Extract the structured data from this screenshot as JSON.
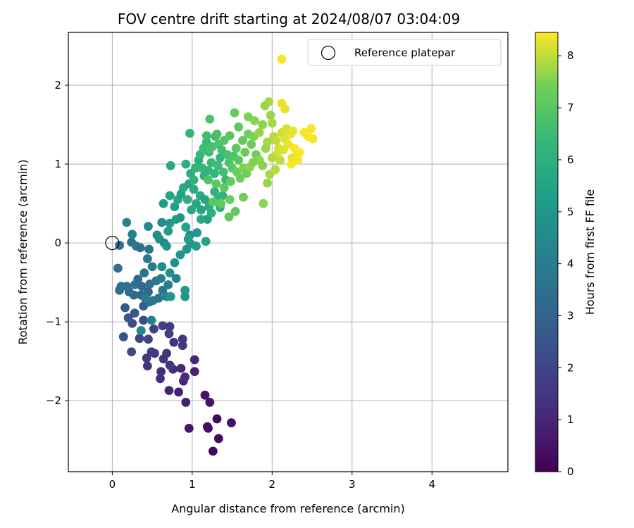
{
  "chart_data": {
    "type": "scatter",
    "title": "FOV centre drift starting at 2024/08/07 03:04:09",
    "xlabel": "Angular distance from reference (arcmin)",
    "ylabel": "Rotation from reference (arcmin)",
    "xlim": [
      -0.55,
      4.95
    ],
    "ylim": [
      -2.9,
      2.67
    ],
    "xticks": [
      0,
      1,
      2,
      3,
      4
    ],
    "yticks": [
      -2,
      -1,
      0,
      1,
      2
    ],
    "x_tick_labels": [
      "0",
      "1",
      "2",
      "3",
      "4"
    ],
    "y_tick_labels": [
      "−2",
      "−1",
      "0",
      "1",
      "2"
    ],
    "grid": true,
    "legend": {
      "position": "top-right",
      "entries": [
        "Reference platepar"
      ]
    },
    "reference_point": {
      "x": 0,
      "y": 0,
      "label": "Reference platepar"
    },
    "colorbar": {
      "label": "Hours from first FF file",
      "range": [
        0,
        8.45
      ],
      "ticks": [
        0,
        1,
        2,
        3,
        4,
        5,
        6,
        7,
        8
      ],
      "tick_labels": [
        "0",
        "1",
        "2",
        "3",
        "4",
        "5",
        "6",
        "7",
        "8"
      ],
      "colormap": "viridis"
    },
    "points": [
      [
        1.26,
        -2.64,
        0.2
      ],
      [
        1.33,
        -2.48,
        0.3
      ],
      [
        1.31,
        -2.23,
        0.25
      ],
      [
        1.49,
        -2.28,
        0.35
      ],
      [
        1.19,
        -2.33,
        0.3
      ],
      [
        1.2,
        -2.35,
        0.4
      ],
      [
        0.96,
        -2.35,
        0.5
      ],
      [
        1.16,
        -1.93,
        0.6
      ],
      [
        1.22,
        -2.02,
        0.55
      ],
      [
        0.92,
        -2.02,
        0.8
      ],
      [
        0.83,
        -1.89,
        0.9
      ],
      [
        0.71,
        -1.87,
        1.0
      ],
      [
        1.03,
        -1.63,
        0.9
      ],
      [
        1.03,
        -1.48,
        1.0
      ],
      [
        0.89,
        -1.75,
        1.1
      ],
      [
        0.91,
        -1.7,
        1.2
      ],
      [
        0.86,
        -1.59,
        1.1
      ],
      [
        0.6,
        -1.72,
        1.3
      ],
      [
        0.61,
        -1.63,
        1.2
      ],
      [
        0.76,
        -1.6,
        1.3
      ],
      [
        0.44,
        -1.56,
        1.4
      ],
      [
        0.72,
        -1.55,
        1.5
      ],
      [
        0.64,
        -1.47,
        1.5
      ],
      [
        0.53,
        -1.4,
        1.6
      ],
      [
        0.49,
        -1.38,
        1.7
      ],
      [
        0.43,
        -1.46,
        1.6
      ],
      [
        0.68,
        -1.4,
        1.5
      ],
      [
        0.77,
        -1.26,
        1.4
      ],
      [
        0.88,
        -1.3,
        1.5
      ],
      [
        0.88,
        -1.22,
        1.6
      ],
      [
        0.71,
        -1.15,
        1.7
      ],
      [
        0.63,
        -1.05,
        1.8
      ],
      [
        0.72,
        -1.06,
        1.7
      ],
      [
        0.52,
        -1.09,
        1.8
      ],
      [
        0.45,
        -1.22,
        1.9
      ],
      [
        0.34,
        -1.21,
        2.0
      ],
      [
        0.36,
        -1.11,
        2.1
      ],
      [
        0.39,
        -0.98,
        2.2
      ],
      [
        0.25,
        -1.02,
        2.3
      ],
      [
        0.14,
        -1.19,
        2.4
      ],
      [
        0.24,
        -1.38,
        2.1
      ],
      [
        0.2,
        -0.95,
        2.5
      ],
      [
        0.28,
        -0.89,
        2.6
      ],
      [
        0.16,
        -0.82,
        2.7
      ],
      [
        0.39,
        -0.8,
        2.8
      ],
      [
        0.43,
        -0.72,
        2.9
      ],
      [
        0.45,
        -0.62,
        3.0
      ],
      [
        0.36,
        -0.66,
        3.1
      ],
      [
        0.27,
        -0.66,
        3.2
      ],
      [
        0.21,
        -0.62,
        3.3
      ],
      [
        0.09,
        -0.6,
        3.4
      ],
      [
        0.11,
        -0.55,
        3.5
      ],
      [
        0.18,
        -0.55,
        3.6
      ],
      [
        0.28,
        -0.53,
        3.7
      ],
      [
        0.37,
        -0.55,
        3.2
      ],
      [
        0.47,
        -0.52,
        3.4
      ],
      [
        0.4,
        -0.38,
        3.6
      ],
      [
        0.32,
        -0.46,
        3.3
      ],
      [
        0.07,
        -0.32,
        3.5
      ],
      [
        0.09,
        -0.03,
        3.4
      ],
      [
        0.24,
        0.01,
        3.6
      ],
      [
        0.3,
        -0.04,
        3.7
      ],
      [
        0.35,
        -0.06,
        3.4
      ],
      [
        0.46,
        -0.08,
        3.6
      ],
      [
        0.44,
        -0.2,
        3.8
      ],
      [
        0.5,
        -0.3,
        4.0
      ],
      [
        0.55,
        -0.48,
        3.9
      ],
      [
        0.61,
        -0.45,
        4.1
      ],
      [
        0.63,
        -0.6,
        3.8
      ],
      [
        0.7,
        -0.53,
        4.0
      ],
      [
        0.8,
        -0.45,
        4.2
      ],
      [
        0.68,
        -0.68,
        4.3
      ],
      [
        0.58,
        -0.7,
        3.7
      ],
      [
        0.51,
        -0.73,
        3.8
      ],
      [
        0.46,
        -0.75,
        3.6
      ],
      [
        0.41,
        -0.7,
        3.9
      ],
      [
        0.49,
        -0.98,
        4.1
      ],
      [
        0.36,
        -1.11,
        4.4
      ],
      [
        0.18,
        0.26,
        4.3
      ],
      [
        0.25,
        0.11,
        4.2
      ],
      [
        0.45,
        0.21,
        4.5
      ],
      [
        0.62,
        0.26,
        4.6
      ],
      [
        0.56,
        0.1,
        4.7
      ],
      [
        0.59,
        0.05,
        4.8
      ],
      [
        0.65,
        0.0,
        4.4
      ],
      [
        0.68,
        -0.04,
        4.9
      ],
      [
        0.62,
        -0.3,
        4.6
      ],
      [
        0.72,
        -0.38,
        4.8
      ],
      [
        0.73,
        -0.68,
        5.0
      ],
      [
        0.91,
        -0.68,
        4.9
      ],
      [
        0.91,
        -0.6,
        5.0
      ],
      [
        0.78,
        -0.25,
        4.7
      ],
      [
        0.85,
        -0.15,
        4.9
      ],
      [
        0.93,
        -0.08,
        5.1
      ],
      [
        0.98,
        -0.01,
        5.0
      ],
      [
        0.97,
        0.1,
        4.8
      ],
      [
        0.7,
        0.15,
        5.2
      ],
      [
        0.72,
        0.25,
        5.1
      ],
      [
        0.8,
        0.3,
        5.3
      ],
      [
        0.85,
        0.32,
        5.0
      ],
      [
        0.92,
        0.2,
        5.4
      ],
      [
        0.95,
        0.05,
        5.2
      ],
      [
        1.05,
        -0.04,
        5.3
      ],
      [
        1.06,
        0.13,
        5.1
      ],
      [
        1.17,
        0.02,
        5.5
      ],
      [
        1.19,
        0.3,
        5.4
      ],
      [
        1.11,
        0.42,
        5.5
      ],
      [
        0.64,
        0.5,
        5.2
      ],
      [
        0.72,
        0.6,
        5.5
      ],
      [
        0.78,
        0.46,
        5.3
      ],
      [
        0.82,
        0.55,
        5.6
      ],
      [
        0.86,
        0.62,
        5.4
      ],
      [
        0.89,
        0.7,
        5.7
      ],
      [
        0.96,
        0.75,
        5.5
      ],
      [
        1.02,
        0.68,
        5.8
      ],
      [
        1.05,
        0.5,
        5.6
      ],
      [
        0.99,
        0.42,
        5.7
      ],
      [
        0.94,
        0.55,
        5.9
      ],
      [
        1.1,
        0.6,
        5.8
      ],
      [
        1.16,
        0.55,
        5.6
      ],
      [
        1.21,
        0.46,
        5.9
      ],
      [
        1.24,
        0.38,
        6.0
      ],
      [
        1.11,
        0.3,
        5.8
      ],
      [
        1.28,
        0.65,
        6.1
      ],
      [
        1.32,
        0.55,
        6.2
      ],
      [
        1.35,
        0.45,
        6.0
      ],
      [
        1.38,
        0.6,
        6.1
      ],
      [
        0.73,
        0.98,
        5.7
      ],
      [
        0.92,
        1.0,
        6.0
      ],
      [
        0.98,
        0.88,
        5.9
      ],
      [
        1.02,
        0.8,
        6.1
      ],
      [
        1.04,
        0.95,
        6.2
      ],
      [
        1.08,
        1.05,
        6.0
      ],
      [
        1.12,
        0.95,
        6.3
      ],
      [
        1.15,
        0.85,
        6.1
      ],
      [
        1.2,
        0.92,
        6.2
      ],
      [
        1.24,
        1.02,
        6.4
      ],
      [
        1.28,
        0.88,
        6.3
      ],
      [
        1.32,
        0.98,
        6.5
      ],
      [
        1.35,
        1.08,
        6.2
      ],
      [
        1.39,
        0.9,
        6.6
      ],
      [
        1.42,
        0.8,
        6.4
      ],
      [
        1.1,
        1.12,
        6.3
      ],
      [
        1.14,
        1.2,
        6.5
      ],
      [
        1.18,
        1.28,
        6.4
      ],
      [
        1.21,
        1.15,
        6.6
      ],
      [
        1.25,
        1.22,
        6.7
      ],
      [
        1.29,
        1.35,
        6.5
      ],
      [
        1.33,
        1.25,
        6.8
      ],
      [
        1.37,
        1.18,
        6.6
      ],
      [
        1.4,
        1.3,
        6.9
      ],
      [
        1.44,
        1.12,
        6.7
      ],
      [
        1.46,
        1.02,
        6.8
      ],
      [
        1.5,
        0.95,
        7.0
      ],
      [
        1.52,
        1.1,
        6.9
      ],
      [
        1.55,
        1.2,
        7.1
      ],
      [
        1.58,
        1.05,
        7.0
      ],
      [
        0.97,
        1.39,
        6.2
      ],
      [
        1.18,
        1.36,
        6.6
      ],
      [
        1.22,
        1.57,
        6.8
      ],
      [
        1.31,
        1.38,
        6.7
      ],
      [
        1.47,
        1.36,
        7.0
      ],
      [
        1.53,
        1.65,
        7.2
      ],
      [
        1.58,
        1.47,
        7.1
      ],
      [
        1.63,
        1.3,
        7.2
      ],
      [
        1.66,
        1.15,
        7.3
      ],
      [
        1.7,
        1.38,
        7.4
      ],
      [
        1.74,
        1.25,
        7.3
      ],
      [
        1.77,
        1.35,
        7.5
      ],
      [
        1.8,
        1.12,
        7.4
      ],
      [
        1.84,
        1.05,
        7.6
      ],
      [
        1.2,
        0.8,
        6.9
      ],
      [
        1.3,
        0.75,
        7.0
      ],
      [
        1.4,
        0.7,
        7.1
      ],
      [
        1.48,
        0.78,
        7.2
      ],
      [
        1.56,
        0.9,
        7.3
      ],
      [
        1.6,
        0.82,
        7.4
      ],
      [
        1.64,
        0.95,
        7.5
      ],
      [
        1.68,
        0.88,
        7.4
      ],
      [
        1.72,
        0.96,
        7.6
      ],
      [
        1.76,
        1.02,
        7.5
      ],
      [
        1.46,
        0.33,
        7.1
      ],
      [
        1.64,
        0.58,
        7.4
      ],
      [
        1.47,
        0.55,
        7.3
      ],
      [
        1.36,
        0.5,
        7.2
      ],
      [
        1.26,
        0.52,
        7.0
      ],
      [
        1.54,
        0.4,
        7.2
      ],
      [
        1.88,
        1.5,
        7.6
      ],
      [
        1.91,
        1.74,
        7.7
      ],
      [
        1.96,
        1.79,
        7.8
      ],
      [
        1.98,
        1.62,
        7.7
      ],
      [
        2.0,
        1.52,
        7.8
      ],
      [
        2.02,
        1.35,
        7.9
      ],
      [
        1.92,
        1.2,
        7.7
      ],
      [
        1.88,
        0.98,
        7.6
      ],
      [
        1.94,
        0.76,
        7.7
      ],
      [
        1.89,
        0.5,
        7.6
      ],
      [
        1.97,
        0.87,
        7.8
      ],
      [
        2.04,
        0.93,
        7.9
      ],
      [
        2.1,
        1.05,
        8.0
      ],
      [
        2.05,
        1.3,
        8.0
      ],
      [
        2.08,
        1.2,
        8.1
      ],
      [
        2.12,
        1.4,
        8.1
      ],
      [
        2.16,
        1.32,
        8.2
      ],
      [
        2.18,
        1.45,
        8.2
      ],
      [
        2.2,
        1.25,
        8.3
      ],
      [
        2.23,
        1.38,
        8.3
      ],
      [
        2.26,
        1.42,
        8.3
      ],
      [
        2.28,
        1.2,
        8.4
      ],
      [
        2.3,
        1.1,
        8.4
      ],
      [
        2.32,
        1.05,
        8.4
      ],
      [
        2.34,
        1.15,
        8.4
      ],
      [
        2.25,
        1.08,
        8.3
      ],
      [
        2.24,
        1.0,
        8.4
      ],
      [
        2.4,
        1.4,
        8.4
      ],
      [
        2.45,
        1.35,
        8.4
      ],
      [
        2.49,
        1.45,
        8.4
      ],
      [
        2.51,
        1.32,
        8.4
      ],
      [
        2.12,
        1.77,
        8.3
      ],
      [
        2.16,
        1.7,
        8.3
      ],
      [
        2.12,
        2.33,
        8.4
      ],
      [
        2.06,
        1.12,
        8.1
      ],
      [
        2.14,
        1.18,
        8.2
      ],
      [
        2.0,
        1.08,
        7.9
      ],
      [
        1.94,
        1.28,
        7.8
      ],
      [
        1.84,
        1.4,
        7.7
      ],
      [
        1.78,
        1.55,
        7.6
      ],
      [
        1.7,
        1.6,
        7.5
      ]
    ]
  }
}
